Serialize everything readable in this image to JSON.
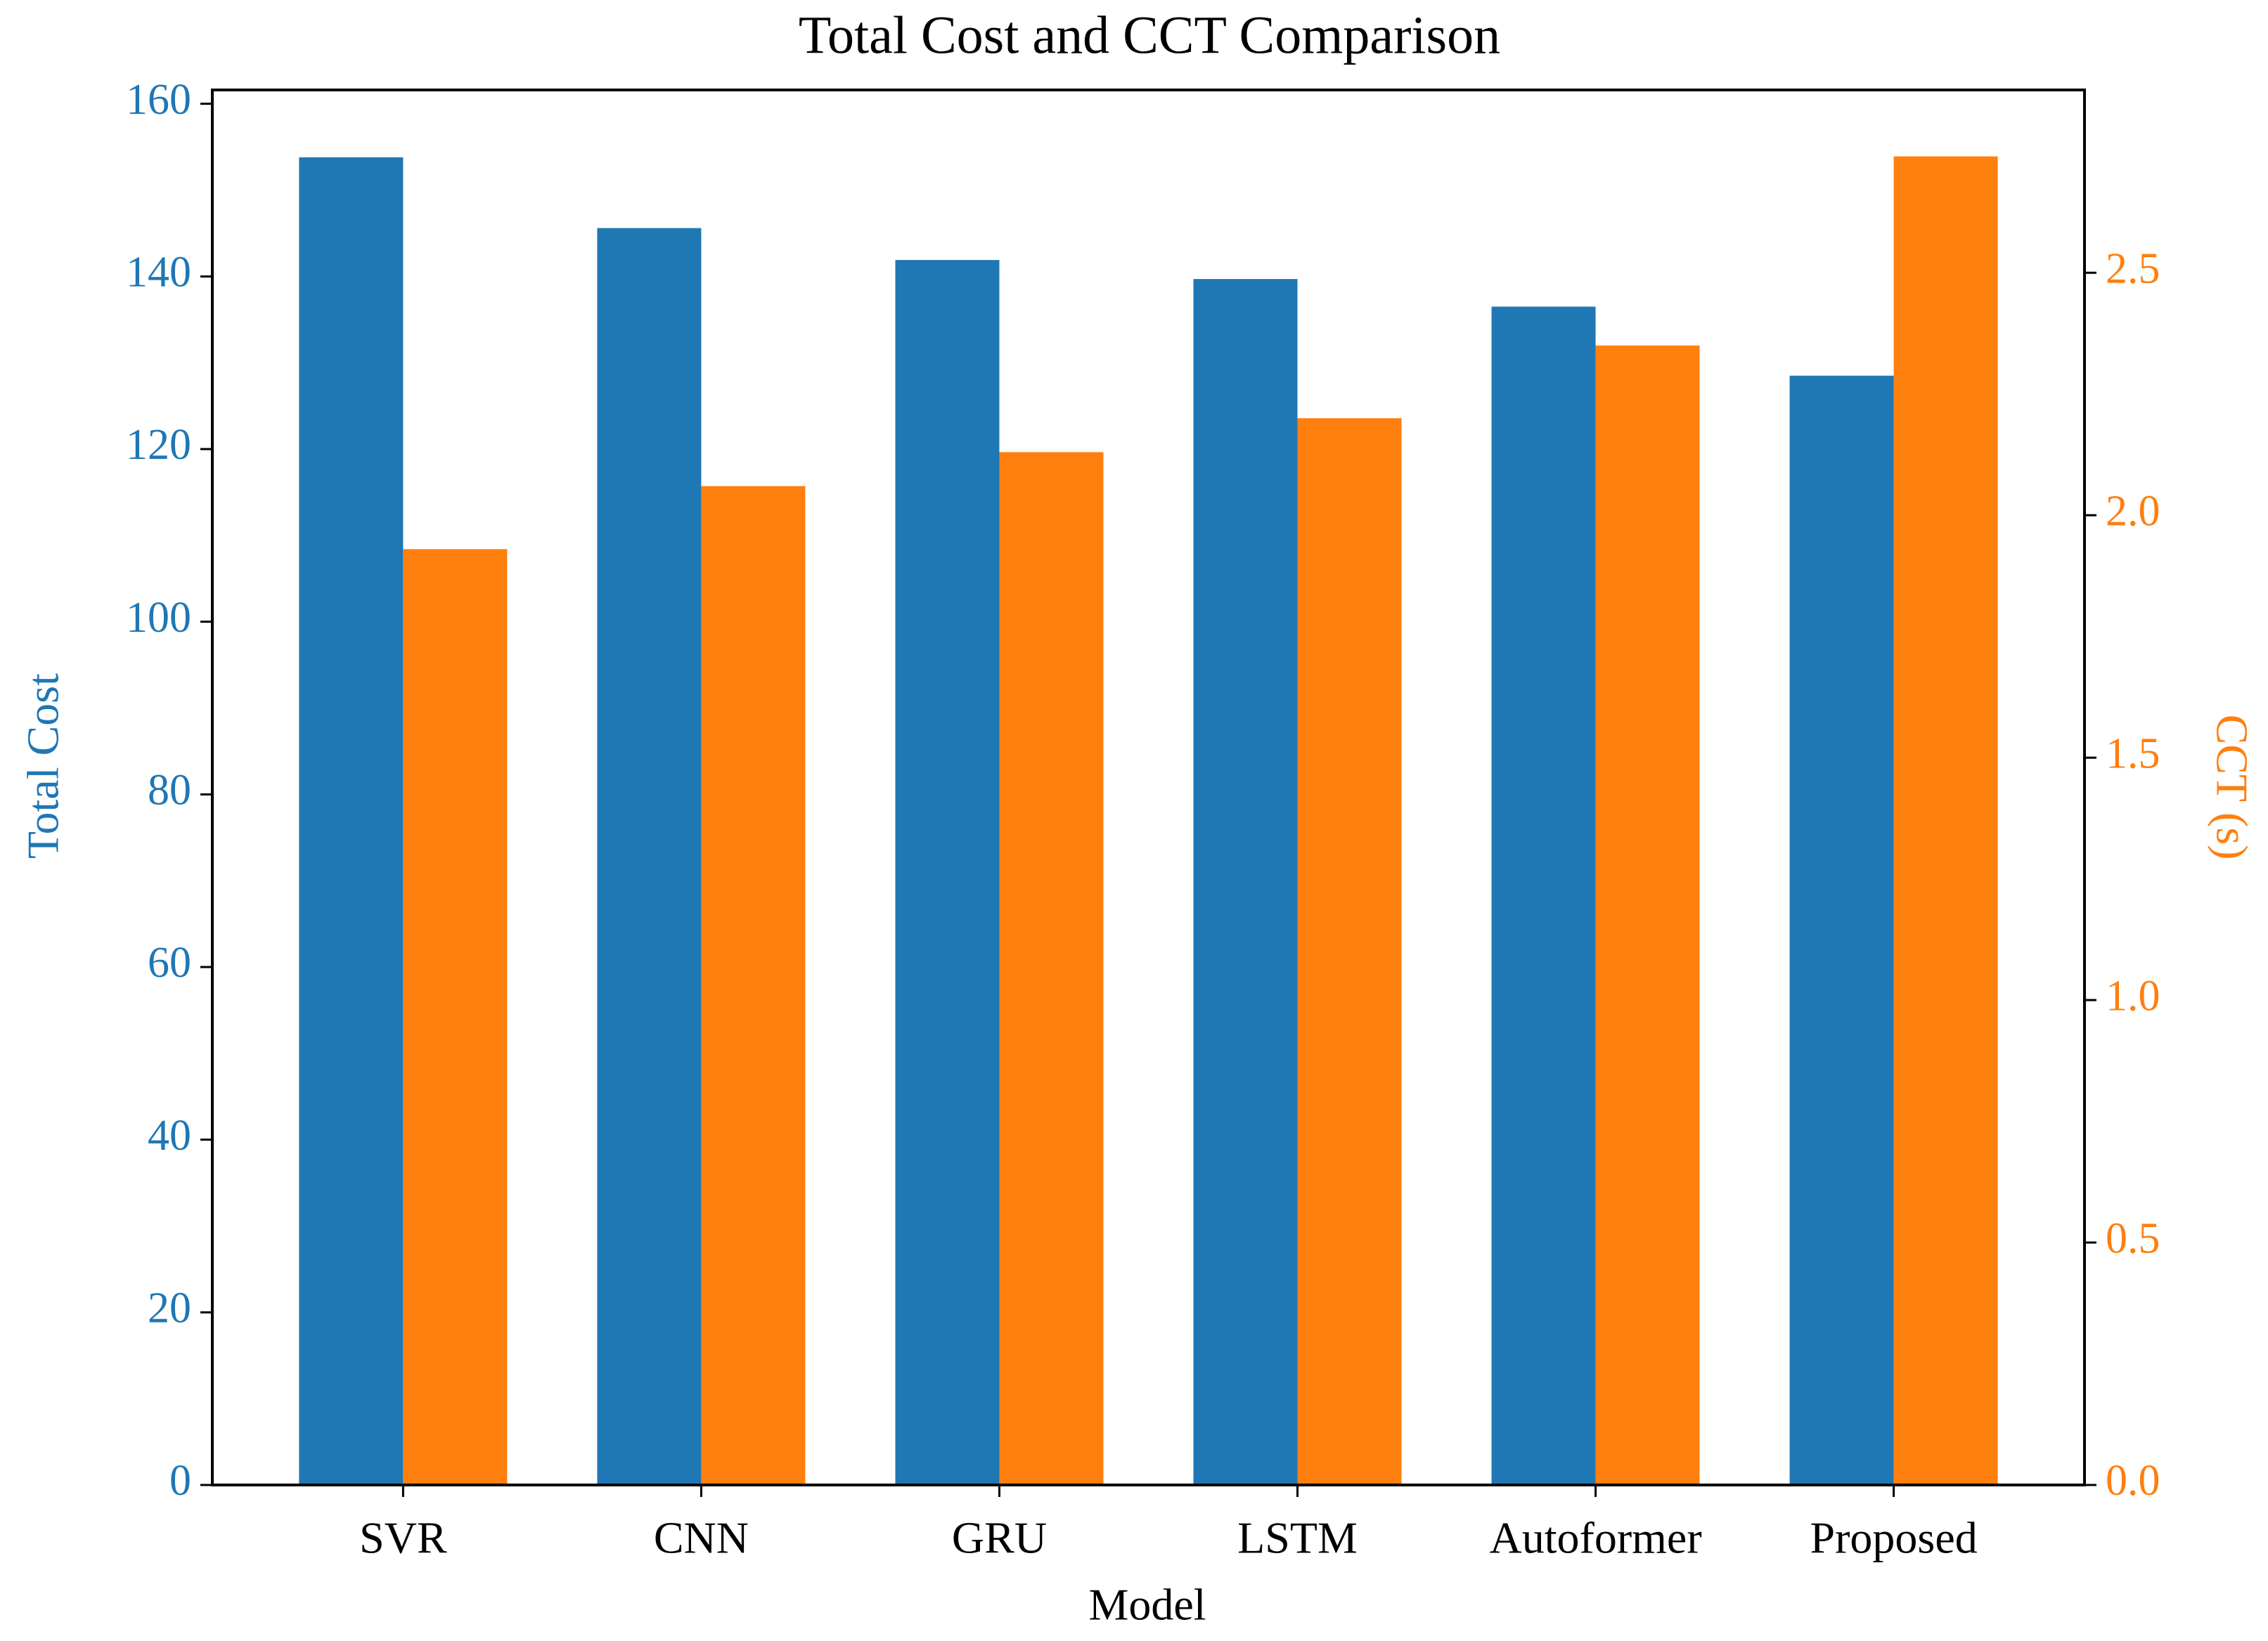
{
  "chart_data": {
    "type": "bar",
    "title": "Total Cost and CCT Comparison",
    "x_label": "Model",
    "y_label": "Total Cost",
    "y2_label": "CCT (s)",
    "categories": [
      "SVR",
      "CNN",
      "GRU",
      "LSTM",
      "Autoformer",
      "Proposed"
    ],
    "series": [
      {
        "name": "Total Cost",
        "color": "#1f77b4",
        "values": [
          153.8,
          145.6,
          141.9,
          139.7,
          136.5,
          128.5
        ]
      },
      {
        "name": "CCT (s)",
        "color": "#ff7f0e",
        "axis": "y2",
        "values": [
          1.93,
          2.06,
          2.13,
          2.2,
          2.35,
          2.74
        ]
      }
    ],
    "ylim": [
      0,
      161.6
    ],
    "yticks": [
      0,
      20,
      40,
      60,
      80,
      100,
      120,
      140,
      160
    ],
    "y2lim": [
      0,
      2.877
    ],
    "y2ticks": [
      {
        "value": 0,
        "label": "0.0"
      },
      0.5,
      {
        "value": 1,
        "label": "1.0"
      },
      1.5,
      {
        "value": 2,
        "label": "2.0"
      },
      2.5
    ]
  }
}
